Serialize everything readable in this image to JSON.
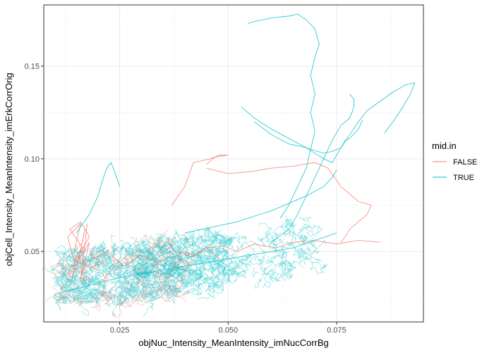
{
  "chart_data": {
    "type": "line",
    "xlabel": "objNuc_Intensity_MeanIntensity_imNucCorrBg",
    "ylabel": "objCell_Intensity_MeanIntensity_imErkCorrOrig",
    "xlim": [
      0.0075,
      0.095
    ],
    "ylim": [
      0.012,
      0.183
    ],
    "x_ticks": [
      0.025,
      0.05,
      0.075
    ],
    "x_tick_labels": [
      "0.025",
      "0.050",
      "0.075"
    ],
    "y_ticks": [
      0.05,
      0.1,
      0.15
    ],
    "y_tick_labels": [
      "0.05",
      "0.10",
      "0.15"
    ],
    "grid": true,
    "legend": {
      "title": "mid.in",
      "position": "right",
      "entries": [
        {
          "label": "FALSE",
          "color": "#F8766D"
        },
        {
          "label": "TRUE",
          "color": "#00BFC4"
        }
      ]
    },
    "series": [
      {
        "name": "FALSE",
        "color": "#F8766D",
        "tracks": [
          {
            "x": [
              0.0145,
              0.016,
              0.013,
              0.015,
              0.017,
              0.0155,
              0.018,
              0.016,
              0.0175
            ],
            "y": [
              0.05,
              0.065,
              0.058,
              0.04,
              0.062,
              0.045,
              0.055,
              0.035,
              0.065
            ]
          },
          {
            "x": [
              0.014,
              0.015,
              0.0165,
              0.0135,
              0.016,
              0.018,
              0.015,
              0.02
            ],
            "y": [
              0.035,
              0.048,
              0.052,
              0.062,
              0.066,
              0.058,
              0.045,
              0.04
            ]
          },
          {
            "x": [
              0.018,
              0.022,
              0.026,
              0.03,
              0.034,
              0.038,
              0.042,
              0.045,
              0.048
            ],
            "y": [
              0.045,
              0.05,
              0.042,
              0.048,
              0.044,
              0.05,
              0.047,
              0.052,
              0.046
            ]
          },
          {
            "x": [
              0.039,
              0.042,
              0.045,
              0.049,
              0.052,
              0.056,
              0.061,
              0.065,
              0.07,
              0.075,
              0.08,
              0.085
            ],
            "y": [
              0.05,
              0.048,
              0.052,
              0.053,
              0.05,
              0.054,
              0.052,
              0.055,
              0.056,
              0.054,
              0.056,
              0.055
            ]
          },
          {
            "x": [
              0.037,
              0.04,
              0.042,
              0.044,
              0.046,
              0.048,
              0.05,
              0.047,
              0.045
            ],
            "y": [
              0.075,
              0.085,
              0.098,
              0.099,
              0.1,
              0.102,
              0.102,
              0.101,
              0.097
            ]
          },
          {
            "x": [
              0.045,
              0.05,
              0.055,
              0.06,
              0.065,
              0.07,
              0.073,
              0.076,
              0.08,
              0.083,
              0.082,
              0.08,
              0.078,
              0.077,
              0.076
            ],
            "y": [
              0.095,
              0.092,
              0.093,
              0.095,
              0.096,
              0.098,
              0.095,
              0.085,
              0.077,
              0.075,
              0.07,
              0.066,
              0.062,
              0.058,
              0.055
            ]
          }
        ]
      },
      {
        "name": "TRUE",
        "color": "#00BFC4",
        "tracks": [
          {
            "x": [
              0.0545,
              0.056,
              0.06,
              0.064,
              0.066,
              0.068,
              0.07,
              0.071,
              0.07,
              0.069,
              0.07,
              0.069,
              0.07,
              0.069,
              0.068,
              0.066,
              0.064,
              0.062
            ],
            "y": [
              0.173,
              0.174,
              0.176,
              0.177,
              0.178,
              0.175,
              0.17,
              0.162,
              0.155,
              0.145,
              0.135,
              0.125,
              0.115,
              0.105,
              0.095,
              0.085,
              0.075,
              0.068
            ]
          },
          {
            "x": [
              0.053,
              0.056,
              0.06,
              0.064,
              0.068,
              0.072,
              0.074,
              0.076,
              0.077,
              0.078,
              0.08,
              0.081
            ],
            "y": [
              0.128,
              0.122,
              0.116,
              0.111,
              0.106,
              0.103,
              0.104,
              0.106,
              0.11,
              0.111,
              0.116,
              0.121
            ]
          },
          {
            "x": [
              0.056,
              0.06,
              0.064,
              0.068,
              0.07,
              0.072,
              0.074,
              0.076,
              0.078,
              0.08,
              0.082,
              0.085,
              0.088,
              0.091,
              0.093,
              0.092,
              0.09,
              0.088,
              0.086
            ],
            "y": [
              0.12,
              0.113,
              0.108,
              0.106,
              0.103,
              0.1,
              0.098,
              0.106,
              0.113,
              0.12,
              0.126,
              0.131,
              0.136,
              0.14,
              0.141,
              0.135,
              0.127,
              0.12,
              0.114
            ]
          },
          {
            "x": [
              0.04,
              0.044,
              0.048,
              0.052,
              0.056,
              0.06,
              0.064,
              0.068,
              0.072,
              0.074,
              0.075
            ],
            "y": [
              0.06,
              0.062,
              0.064,
              0.066,
              0.069,
              0.072,
              0.076,
              0.08,
              0.085,
              0.09,
              0.094
            ]
          },
          {
            "x": [
              0.06,
              0.064,
              0.066,
              0.068,
              0.07,
              0.072,
              0.074,
              0.076,
              0.078,
              0.079,
              0.079,
              0.078
            ],
            "y": [
              0.055,
              0.062,
              0.07,
              0.08,
              0.09,
              0.1,
              0.11,
              0.118,
              0.122,
              0.128,
              0.132,
              0.135
            ]
          },
          {
            "x": [
              0.01,
              0.015,
              0.02,
              0.025,
              0.03,
              0.035,
              0.04,
              0.045,
              0.05,
              0.055,
              0.06,
              0.065,
              0.07,
              0.075
            ],
            "y": [
              0.027,
              0.03,
              0.033,
              0.036,
              0.038,
              0.04,
              0.042,
              0.044,
              0.046,
              0.048,
              0.05,
              0.052,
              0.056,
              0.06
            ]
          },
          {
            "x": [
              0.015,
              0.018,
              0.02,
              0.021,
              0.022,
              0.023,
              0.024,
              0.025
            ],
            "y": [
              0.06,
              0.07,
              0.08,
              0.088,
              0.095,
              0.098,
              0.092,
              0.085
            ]
          }
        ]
      }
    ]
  }
}
